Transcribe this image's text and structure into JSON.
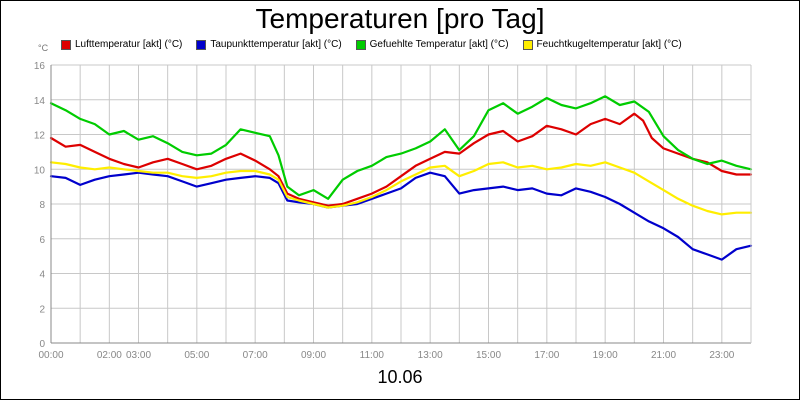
{
  "chart_data": {
    "type": "line",
    "title": "Temperaturen [pro Tag]",
    "ylabel": "°C",
    "xlabel": "10.06",
    "ylim": [
      0,
      16
    ],
    "xlim": [
      0,
      24
    ],
    "grid": true,
    "legend_position": "top",
    "y_ticks": [
      "0",
      "2",
      "4",
      "6",
      "8",
      "10",
      "12",
      "14",
      "16"
    ],
    "x_ticks": [
      {
        "x": 0,
        "label": "00:00"
      },
      {
        "x": 2,
        "label": "02:00"
      },
      {
        "x": 3,
        "label": "03:00"
      },
      {
        "x": 5,
        "label": "05:00"
      },
      {
        "x": 7,
        "label": "07:00"
      },
      {
        "x": 9,
        "label": "09:00"
      },
      {
        "x": 11,
        "label": "11:00"
      },
      {
        "x": 13,
        "label": "13:00"
      },
      {
        "x": 15,
        "label": "15:00"
      },
      {
        "x": 17,
        "label": "17:00"
      },
      {
        "x": 19,
        "label": "19:00"
      },
      {
        "x": 21,
        "label": "21:00"
      },
      {
        "x": 23,
        "label": "23:00"
      }
    ],
    "series": [
      {
        "name": "Lufttemperatur [akt] (°C)",
        "color": "#dd0000",
        "points": [
          [
            0,
            11.8
          ],
          [
            0.5,
            11.3
          ],
          [
            1,
            11.4
          ],
          [
            1.5,
            11.0
          ],
          [
            2,
            10.6
          ],
          [
            2.5,
            10.3
          ],
          [
            3,
            10.1
          ],
          [
            3.5,
            10.4
          ],
          [
            4,
            10.6
          ],
          [
            4.5,
            10.3
          ],
          [
            5,
            10.0
          ],
          [
            5.5,
            10.2
          ],
          [
            6,
            10.6
          ],
          [
            6.5,
            10.9
          ],
          [
            7,
            10.5
          ],
          [
            7.5,
            10.0
          ],
          [
            7.8,
            9.6
          ],
          [
            8.1,
            8.6
          ],
          [
            8.5,
            8.3
          ],
          [
            9,
            8.1
          ],
          [
            9.5,
            7.9
          ],
          [
            10,
            8.0
          ],
          [
            10.5,
            8.3
          ],
          [
            11,
            8.6
          ],
          [
            11.5,
            9.0
          ],
          [
            12,
            9.6
          ],
          [
            12.5,
            10.2
          ],
          [
            13,
            10.6
          ],
          [
            13.5,
            11.0
          ],
          [
            14,
            10.9
          ],
          [
            14.5,
            11.5
          ],
          [
            15,
            12.0
          ],
          [
            15.5,
            12.2
          ],
          [
            16,
            11.6
          ],
          [
            16.5,
            11.9
          ],
          [
            17,
            12.5
          ],
          [
            17.5,
            12.3
          ],
          [
            18,
            12.0
          ],
          [
            18.5,
            12.6
          ],
          [
            19,
            12.9
          ],
          [
            19.5,
            12.6
          ],
          [
            20,
            13.2
          ],
          [
            20.3,
            12.8
          ],
          [
            20.6,
            11.8
          ],
          [
            21,
            11.2
          ],
          [
            21.5,
            10.9
          ],
          [
            22,
            10.6
          ],
          [
            22.5,
            10.4
          ],
          [
            23,
            9.9
          ],
          [
            23.5,
            9.7
          ],
          [
            24,
            9.7
          ]
        ]
      },
      {
        "name": "Taupunkttemperatur [akt] (°C)",
        "color": "#0000cc",
        "points": [
          [
            0,
            9.6
          ],
          [
            0.5,
            9.5
          ],
          [
            1,
            9.1
          ],
          [
            1.5,
            9.4
          ],
          [
            2,
            9.6
          ],
          [
            2.5,
            9.7
          ],
          [
            3,
            9.8
          ],
          [
            3.5,
            9.7
          ],
          [
            4,
            9.6
          ],
          [
            4.5,
            9.3
          ],
          [
            5,
            9.0
          ],
          [
            5.5,
            9.2
          ],
          [
            6,
            9.4
          ],
          [
            6.5,
            9.5
          ],
          [
            7,
            9.6
          ],
          [
            7.5,
            9.5
          ],
          [
            7.8,
            9.2
          ],
          [
            8.1,
            8.2
          ],
          [
            8.5,
            8.1
          ],
          [
            9,
            8.0
          ],
          [
            9.5,
            7.8
          ],
          [
            10,
            7.9
          ],
          [
            10.5,
            8.0
          ],
          [
            11,
            8.3
          ],
          [
            11.5,
            8.6
          ],
          [
            12,
            8.9
          ],
          [
            12.5,
            9.5
          ],
          [
            13,
            9.8
          ],
          [
            13.5,
            9.6
          ],
          [
            14,
            8.6
          ],
          [
            14.5,
            8.8
          ],
          [
            15,
            8.9
          ],
          [
            15.5,
            9.0
          ],
          [
            16,
            8.8
          ],
          [
            16.5,
            8.9
          ],
          [
            17,
            8.6
          ],
          [
            17.5,
            8.5
          ],
          [
            18,
            8.9
          ],
          [
            18.5,
            8.7
          ],
          [
            19,
            8.4
          ],
          [
            19.5,
            8.0
          ],
          [
            20,
            7.5
          ],
          [
            20.5,
            7.0
          ],
          [
            21,
            6.6
          ],
          [
            21.5,
            6.1
          ],
          [
            22,
            5.4
          ],
          [
            22.5,
            5.1
          ],
          [
            23,
            4.8
          ],
          [
            23.5,
            5.4
          ],
          [
            24,
            5.6
          ]
        ]
      },
      {
        "name": "Gefuehlte Temperatur [akt] (°C)",
        "color": "#00cc00",
        "points": [
          [
            0,
            13.8
          ],
          [
            0.5,
            13.4
          ],
          [
            1,
            12.9
          ],
          [
            1.5,
            12.6
          ],
          [
            2,
            12.0
          ],
          [
            2.5,
            12.2
          ],
          [
            3,
            11.7
          ],
          [
            3.5,
            11.9
          ],
          [
            4,
            11.5
          ],
          [
            4.5,
            11.0
          ],
          [
            5,
            10.8
          ],
          [
            5.5,
            10.9
          ],
          [
            6,
            11.4
          ],
          [
            6.5,
            12.3
          ],
          [
            7,
            12.1
          ],
          [
            7.5,
            11.9
          ],
          [
            7.8,
            10.8
          ],
          [
            8.1,
            9.0
          ],
          [
            8.5,
            8.5
          ],
          [
            9,
            8.8
          ],
          [
            9.5,
            8.3
          ],
          [
            10,
            9.4
          ],
          [
            10.5,
            9.9
          ],
          [
            11,
            10.2
          ],
          [
            11.5,
            10.7
          ],
          [
            12,
            10.9
          ],
          [
            12.5,
            11.2
          ],
          [
            13,
            11.6
          ],
          [
            13.5,
            12.3
          ],
          [
            14,
            11.1
          ],
          [
            14.5,
            11.9
          ],
          [
            15,
            13.4
          ],
          [
            15.5,
            13.8
          ],
          [
            16,
            13.2
          ],
          [
            16.5,
            13.6
          ],
          [
            17,
            14.1
          ],
          [
            17.5,
            13.7
          ],
          [
            18,
            13.5
          ],
          [
            18.5,
            13.8
          ],
          [
            19,
            14.2
          ],
          [
            19.5,
            13.7
          ],
          [
            20,
            13.9
          ],
          [
            20.5,
            13.3
          ],
          [
            21,
            11.9
          ],
          [
            21.5,
            11.1
          ],
          [
            22,
            10.6
          ],
          [
            22.5,
            10.3
          ],
          [
            23,
            10.5
          ],
          [
            23.5,
            10.2
          ],
          [
            24,
            10.0
          ]
        ]
      },
      {
        "name": "Feuchtkugeltemperatur [akt] (°C)",
        "color": "#ffee00",
        "points": [
          [
            0,
            10.4
          ],
          [
            0.5,
            10.3
          ],
          [
            1,
            10.1
          ],
          [
            1.5,
            10.0
          ],
          [
            2,
            10.1
          ],
          [
            2.5,
            10.0
          ],
          [
            3,
            9.9
          ],
          [
            3.5,
            9.8
          ],
          [
            4,
            9.8
          ],
          [
            4.5,
            9.6
          ],
          [
            5,
            9.5
          ],
          [
            5.5,
            9.6
          ],
          [
            6,
            9.8
          ],
          [
            6.5,
            9.9
          ],
          [
            7,
            9.9
          ],
          [
            7.5,
            9.7
          ],
          [
            7.8,
            9.4
          ],
          [
            8.1,
            8.4
          ],
          [
            8.5,
            8.2
          ],
          [
            9,
            8.0
          ],
          [
            9.5,
            7.8
          ],
          [
            10,
            7.9
          ],
          [
            10.5,
            8.1
          ],
          [
            11,
            8.4
          ],
          [
            11.5,
            8.8
          ],
          [
            12,
            9.3
          ],
          [
            12.5,
            9.7
          ],
          [
            13,
            10.1
          ],
          [
            13.5,
            10.2
          ],
          [
            14,
            9.6
          ],
          [
            14.5,
            9.9
          ],
          [
            15,
            10.3
          ],
          [
            15.5,
            10.4
          ],
          [
            16,
            10.1
          ],
          [
            16.5,
            10.2
          ],
          [
            17,
            10.0
          ],
          [
            17.5,
            10.1
          ],
          [
            18,
            10.3
          ],
          [
            18.5,
            10.2
          ],
          [
            19,
            10.4
          ],
          [
            19.5,
            10.1
          ],
          [
            20,
            9.8
          ],
          [
            20.5,
            9.3
          ],
          [
            21,
            8.8
          ],
          [
            21.5,
            8.3
          ],
          [
            22,
            7.9
          ],
          [
            22.5,
            7.6
          ],
          [
            23,
            7.4
          ],
          [
            23.5,
            7.5
          ],
          [
            24,
            7.5
          ]
        ]
      }
    ]
  }
}
